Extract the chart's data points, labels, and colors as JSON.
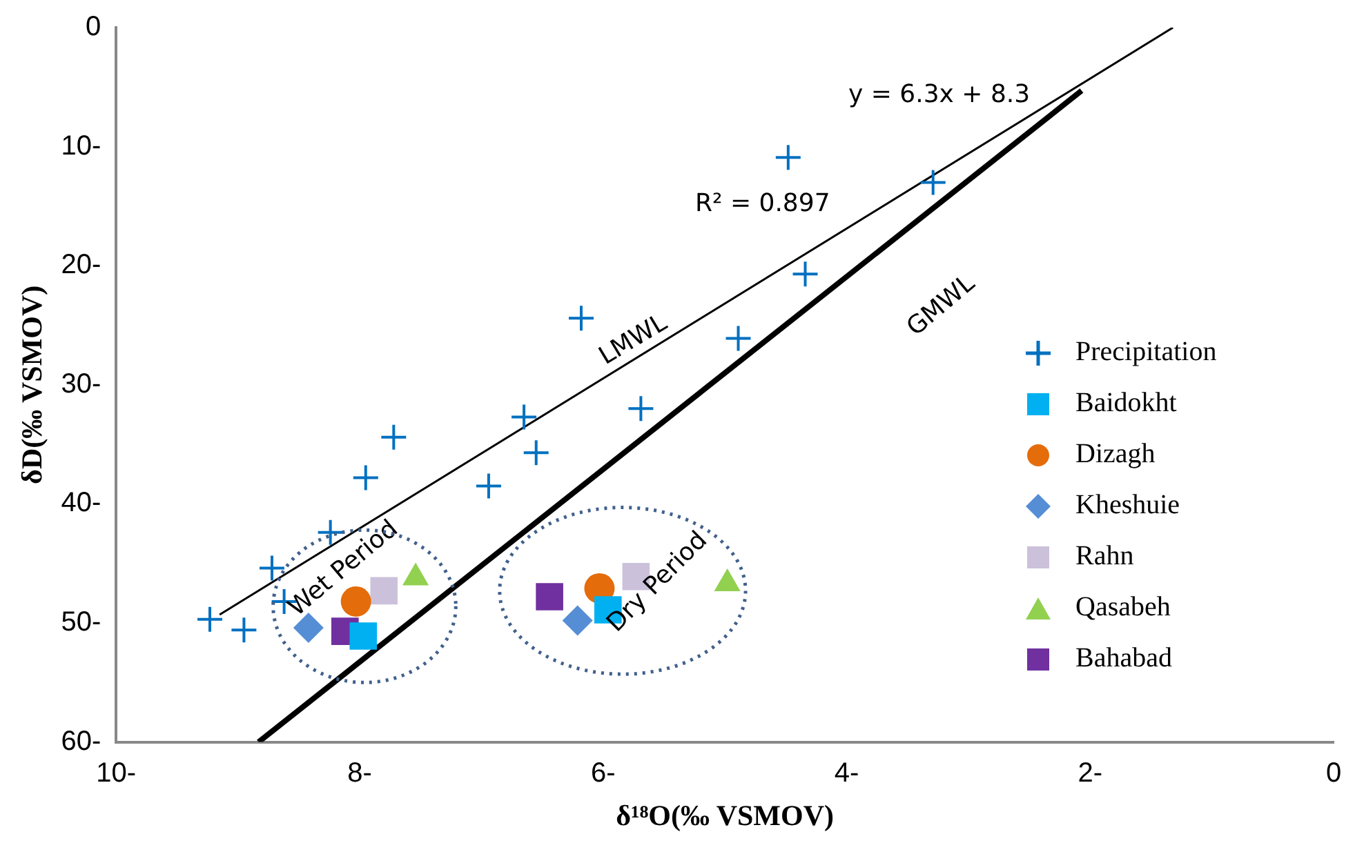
{
  "chart_data": {
    "type": "scatter",
    "xlabel": "δ¹⁸O(‰ VSMOV)",
    "ylabel": "δD(‰ VSMOV)",
    "xlim": [
      -10,
      0
    ],
    "xticks": [
      {
        "value": -10,
        "label": "10-"
      },
      {
        "value": -8,
        "label": "8-"
      },
      {
        "value": -6,
        "label": "6-"
      },
      {
        "value": -4,
        "label": "4-"
      },
      {
        "value": -2,
        "label": "2-"
      },
      0
    ],
    "ylim": [
      -60,
      0
    ],
    "yticks": [
      {
        "value": -60,
        "label": "60-"
      },
      {
        "value": -50,
        "label": "50-"
      },
      {
        "value": -40,
        "label": "40-"
      },
      {
        "value": -30,
        "label": "30-"
      },
      {
        "value": -20,
        "label": "20-"
      },
      {
        "value": -10,
        "label": "10-"
      },
      0
    ],
    "grid": false,
    "legend": "right",
    "series": [
      {
        "name": "Precipitation",
        "color": "#0070c0",
        "marker": "cross",
        "x": [
          -4.48,
          -3.29,
          -4.34,
          -4.89,
          -6.18,
          -5.69,
          -6.65,
          -6.55,
          -6.94,
          -7.72,
          -7.95,
          -8.24,
          -8.72,
          -8.62,
          -9.23,
          -8.95
        ],
        "values": [
          -10.9,
          -13.0,
          -20.7,
          -26.1,
          -24.4,
          -32.0,
          -32.7,
          -35.7,
          -38.5,
          -34.4,
          -37.8,
          -42.4,
          -45.4,
          -48.2,
          -49.7,
          -50.6
        ]
      },
      {
        "name": "Baidokht",
        "color": "#00b0f0",
        "marker": "square",
        "x": [
          -7.97,
          -5.96
        ],
        "values": [
          -51.1,
          -48.9
        ]
      },
      {
        "name": "Dizagh",
        "color": "#e46c0a",
        "marker": "circle",
        "x": [
          -8.03,
          -6.03
        ],
        "values": [
          -48.2,
          -47.1
        ]
      },
      {
        "name": "Kheshuie",
        "color": "#558ed5",
        "marker": "diamond",
        "x": [
          -8.42,
          -6.21
        ],
        "values": [
          -50.4,
          -49.8
        ]
      },
      {
        "name": "Rahn",
        "color": "#ccc1da",
        "marker": "square",
        "x": [
          -7.8,
          -5.73
        ],
        "values": [
          -47.3,
          -46.1
        ]
      },
      {
        "name": "Qasabeh",
        "color": "#92d050",
        "marker": "triangle",
        "x": [
          -7.54,
          -4.98
        ],
        "values": [
          -46.2,
          -46.7
        ]
      },
      {
        "name": "Bahabad",
        "color": "#7030a0",
        "marker": "square",
        "x": [
          -8.12,
          -6.44
        ],
        "values": [
          -50.7,
          -47.8
        ]
      },
      {
        "type": "line",
        "color": "#000000",
        "marker": "none",
        "x": [
          -9.15,
          -1.32
        ],
        "values": [
          -49.3,
          0
        ]
      },
      {
        "type": "line",
        "color": "#000000",
        "marker": "none",
        "x": [
          -8.83,
          -2.07
        ],
        "values": [
          -60,
          -5.3
        ]
      }
    ],
    "annotations": [
      "y = 6.3x + 8.3",
      "R² = 0.897",
      "LMWL",
      "GMWL",
      "Wet Period",
      "Dry Period"
    ]
  }
}
